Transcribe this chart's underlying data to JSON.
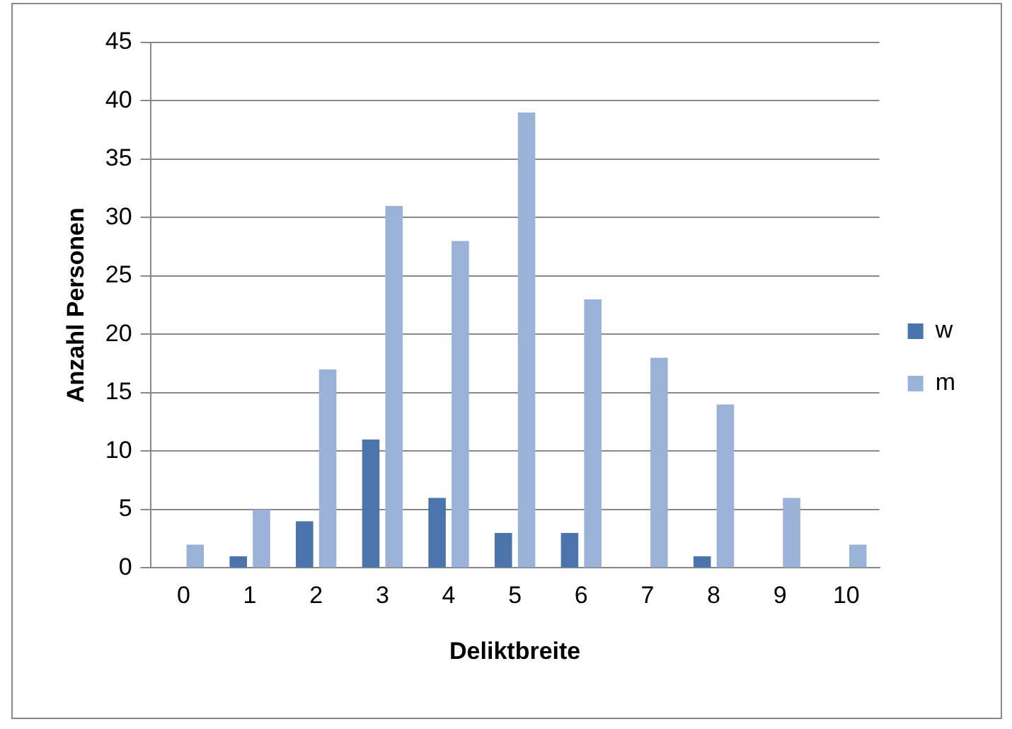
{
  "chart_data": {
    "type": "bar",
    "xlabel": "Deliktbreite",
    "ylabel": "Anzahl Personen",
    "categories": [
      "0",
      "1",
      "2",
      "3",
      "4",
      "5",
      "6",
      "7",
      "8",
      "9",
      "10"
    ],
    "series": [
      {
        "name": "w",
        "color": "#4a74ab",
        "values": [
          0,
          1,
          4,
          11,
          6,
          3,
          3,
          0,
          1,
          0,
          0
        ]
      },
      {
        "name": "m",
        "color": "#9bb2d8",
        "values": [
          2,
          5,
          17,
          31,
          28,
          39,
          23,
          18,
          14,
          6,
          2
        ]
      }
    ],
    "ylim": [
      0,
      45
    ],
    "yticks": [
      0,
      5,
      10,
      15,
      20,
      25,
      30,
      35,
      40,
      45
    ],
    "grid": "y",
    "legend": "right"
  }
}
